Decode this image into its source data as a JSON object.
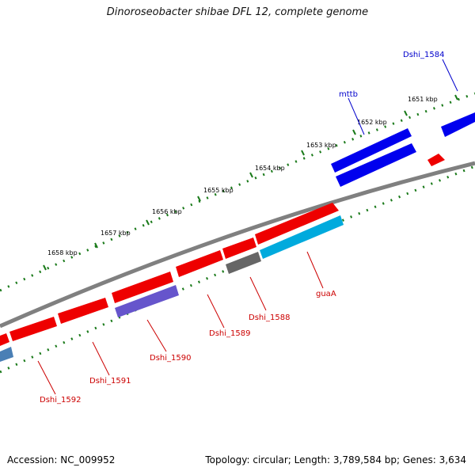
{
  "title": "Dinoroseobacter shibae DFL 12, complete genome",
  "footer": {
    "accession": "Accession: NC_009952",
    "stats": "Topology: circular; Length: 3,789,584 bp; Genes: 3,634"
  },
  "kbp_labels": [
    "1651 kbp",
    "1652 kbp",
    "1653 kbp",
    "1654 kbp",
    "1655 kbp",
    "1656 kbp",
    "1657 kbp",
    "1658 kbp"
  ],
  "gene_labels": [
    {
      "text": "Dshi_1584",
      "color": "#0000cc"
    },
    {
      "text": "mttb",
      "color": "#0000cc"
    },
    {
      "text": "guaA",
      "color": "#cc0000"
    },
    {
      "text": "Dshi_1588",
      "color": "#cc0000"
    },
    {
      "text": "Dshi_1589",
      "color": "#cc0000"
    },
    {
      "text": "Dshi_1590",
      "color": "#cc0000"
    },
    {
      "text": "Dshi_1591",
      "color": "#cc0000"
    },
    {
      "text": "Dshi_1592",
      "color": "#cc0000"
    }
  ],
  "colors": {
    "forward_strand": "#0000ee",
    "reverse_strand": "#ee0000",
    "rrna_like": "#00aadd",
    "purple_feature": "#6655cc",
    "gray_feature": "#666666",
    "backbone": "#808080",
    "tick": "#1a7a1a"
  }
}
